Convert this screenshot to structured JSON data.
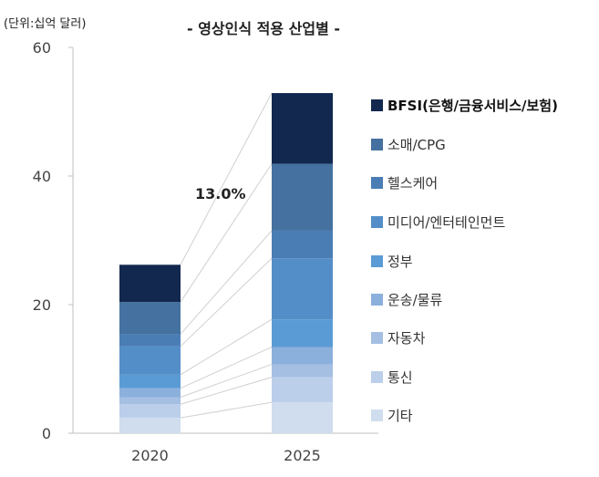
{
  "chart_data": {
    "type": "bar",
    "stacked": true,
    "title": "- 영상인식 적용 산업별 -",
    "unit_label": "(단위:십억 달러)",
    "annotation": "13.0%",
    "categories": [
      "2020",
      "2025"
    ],
    "ylim": [
      0,
      60
    ],
    "yticks": [
      0,
      20,
      40,
      60
    ],
    "grid": false,
    "legend_position": "right",
    "series": [
      {
        "name": "기타",
        "values": [
          2.4,
          4.8
        ],
        "color": "#d0ddef"
      },
      {
        "name": "통신",
        "values": [
          2.1,
          3.9
        ],
        "color": "#bccfea"
      },
      {
        "name": "자동차",
        "values": [
          1.1,
          2.0
        ],
        "color": "#a5bfe3"
      },
      {
        "name": "운송/물류",
        "values": [
          1.4,
          2.7
        ],
        "color": "#8cb0dc"
      },
      {
        "name": "정부",
        "values": [
          2.1,
          4.3
        ],
        "color": "#5b9bd5"
      },
      {
        "name": "미디어/엔터테인먼트",
        "values": [
          4.4,
          9.5
        ],
        "color": "#548ec8"
      },
      {
        "name": "헬스케어",
        "values": [
          1.9,
          4.3
        ],
        "color": "#4a7db4"
      },
      {
        "name": "소매/CPG",
        "values": [
          5.0,
          10.4
        ],
        "color": "#44719f"
      },
      {
        "name": "BFSI(은행/금융서비스/보험)",
        "values": [
          5.8,
          11.0
        ],
        "color": "#12284f"
      }
    ]
  }
}
